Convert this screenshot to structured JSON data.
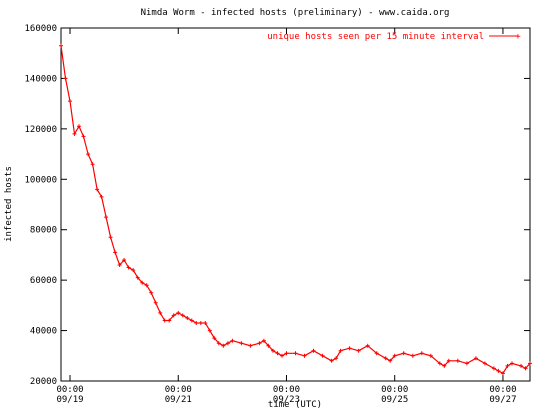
{
  "chart_data": {
    "type": "line",
    "title": "Nimda Worm - infected hosts (preliminary) - www.caida.org",
    "xlabel": "time (UTC)",
    "ylabel": "infected hosts",
    "ylim": [
      20000,
      160000
    ],
    "yticks": [
      20000,
      40000,
      60000,
      80000,
      100000,
      120000,
      140000,
      160000
    ],
    "ytick_labels": [
      "20000",
      "40000",
      "60000",
      "80000",
      "100000",
      "120000",
      "140000",
      "160000"
    ],
    "xlim": [
      "2001-09-18 20:00",
      "2001-09-27 12:00"
    ],
    "xticks": [
      {
        "x": "2001-09-19 00:00",
        "time": "00:00",
        "date": "09/19"
      },
      {
        "x": "2001-09-21 00:00",
        "time": "00:00",
        "date": "09/21"
      },
      {
        "x": "2001-09-23 00:00",
        "time": "00:00",
        "date": "09/23"
      },
      {
        "x": "2001-09-25 00:00",
        "time": "00:00",
        "date": "09/25"
      },
      {
        "x": "2001-09-27 00:00",
        "time": "00:00",
        "date": "09/27"
      }
    ],
    "grid": false,
    "legend_position": "top-right",
    "series": [
      {
        "name": "unique hosts seen per 15 minute interval",
        "color": "#ff0000",
        "points": [
          [
            "2001-09-18 20:00",
            153000
          ],
          [
            "2001-09-18 22:00",
            140000
          ],
          [
            "2001-09-19 00:00",
            131000
          ],
          [
            "2001-09-19 02:00",
            118000
          ],
          [
            "2001-09-19 04:00",
            121000
          ],
          [
            "2001-09-19 06:00",
            117000
          ],
          [
            "2001-09-19 08:00",
            110000
          ],
          [
            "2001-09-19 10:00",
            106000
          ],
          [
            "2001-09-19 12:00",
            96000
          ],
          [
            "2001-09-19 14:00",
            93000
          ],
          [
            "2001-09-19 16:00",
            85000
          ],
          [
            "2001-09-19 18:00",
            77000
          ],
          [
            "2001-09-19 20:00",
            71000
          ],
          [
            "2001-09-19 22:00",
            66000
          ],
          [
            "2001-09-20 00:00",
            68000
          ],
          [
            "2001-09-20 02:00",
            65000
          ],
          [
            "2001-09-20 04:00",
            64000
          ],
          [
            "2001-09-20 06:00",
            61000
          ],
          [
            "2001-09-20 08:00",
            59000
          ],
          [
            "2001-09-20 10:00",
            58000
          ],
          [
            "2001-09-20 12:00",
            55000
          ],
          [
            "2001-09-20 14:00",
            51000
          ],
          [
            "2001-09-20 16:00",
            47000
          ],
          [
            "2001-09-20 18:00",
            44000
          ],
          [
            "2001-09-20 20:00",
            44000
          ],
          [
            "2001-09-20 22:00",
            46000
          ],
          [
            "2001-09-21 00:00",
            47000
          ],
          [
            "2001-09-21 02:00",
            46000
          ],
          [
            "2001-09-21 04:00",
            45000
          ],
          [
            "2001-09-21 06:00",
            44000
          ],
          [
            "2001-09-21 08:00",
            43000
          ],
          [
            "2001-09-21 10:00",
            43000
          ],
          [
            "2001-09-21 12:00",
            43000
          ],
          [
            "2001-09-21 14:00",
            40000
          ],
          [
            "2001-09-21 16:00",
            37000
          ],
          [
            "2001-09-21 18:00",
            35000
          ],
          [
            "2001-09-21 20:00",
            34000
          ],
          [
            "2001-09-21 22:00",
            35000
          ],
          [
            "2001-09-22 00:00",
            36000
          ],
          [
            "2001-09-22 04:00",
            35000
          ],
          [
            "2001-09-22 08:00",
            34000
          ],
          [
            "2001-09-22 12:00",
            35000
          ],
          [
            "2001-09-22 14:00",
            36000
          ],
          [
            "2001-09-22 16:00",
            34000
          ],
          [
            "2001-09-22 18:00",
            32000
          ],
          [
            "2001-09-22 20:00",
            31000
          ],
          [
            "2001-09-22 22:00",
            30000
          ],
          [
            "2001-09-23 00:00",
            31000
          ],
          [
            "2001-09-23 04:00",
            31000
          ],
          [
            "2001-09-23 08:00",
            30000
          ],
          [
            "2001-09-23 12:00",
            32000
          ],
          [
            "2001-09-23 16:00",
            30000
          ],
          [
            "2001-09-23 20:00",
            28000
          ],
          [
            "2001-09-23 22:00",
            29000
          ],
          [
            "2001-09-24 00:00",
            32000
          ],
          [
            "2001-09-24 04:00",
            33000
          ],
          [
            "2001-09-24 08:00",
            32000
          ],
          [
            "2001-09-24 12:00",
            34000
          ],
          [
            "2001-09-24 16:00",
            31000
          ],
          [
            "2001-09-24 20:00",
            29000
          ],
          [
            "2001-09-24 22:00",
            28000
          ],
          [
            "2001-09-25 00:00",
            30000
          ],
          [
            "2001-09-25 04:00",
            31000
          ],
          [
            "2001-09-25 08:00",
            30000
          ],
          [
            "2001-09-25 12:00",
            31000
          ],
          [
            "2001-09-25 16:00",
            30000
          ],
          [
            "2001-09-25 20:00",
            27000
          ],
          [
            "2001-09-25 22:00",
            26000
          ],
          [
            "2001-09-26 00:00",
            28000
          ],
          [
            "2001-09-26 04:00",
            28000
          ],
          [
            "2001-09-26 08:00",
            27000
          ],
          [
            "2001-09-26 12:00",
            29000
          ],
          [
            "2001-09-26 16:00",
            27000
          ],
          [
            "2001-09-26 20:00",
            25000
          ],
          [
            "2001-09-26 22:00",
            24000
          ],
          [
            "2001-09-27 00:00",
            23000
          ],
          [
            "2001-09-27 02:00",
            26000
          ],
          [
            "2001-09-27 04:00",
            27000
          ],
          [
            "2001-09-27 08:00",
            26000
          ],
          [
            "2001-09-27 10:00",
            25000
          ],
          [
            "2001-09-27 12:00",
            27000
          ]
        ]
      }
    ]
  }
}
